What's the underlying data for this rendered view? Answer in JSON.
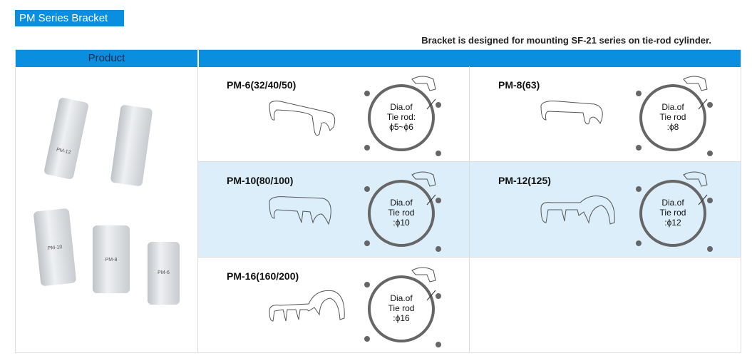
{
  "title": "PM Series Bracket",
  "subtitle": "Bracket is designed for mounting SF-21 series on tie-rod cylinder.",
  "header": {
    "product": "Product"
  },
  "product_labels": [
    "PM-12",
    "PM-10",
    "PM-8",
    "PM-6"
  ],
  "cells": [
    {
      "model": "PM-6(32/40/50)",
      "l1": "Dia.of",
      "l2": "Tie rod:",
      "l3": "ϕ5~ϕ6"
    },
    {
      "model": "PM-8(63)",
      "l1": "Dia.of",
      "l2": "Tie rod",
      "l3": ":ϕ8"
    },
    {
      "model": "PM-10(80/100)",
      "l1": "Dia.of",
      "l2": "Tie rod",
      "l3": ":ϕ10"
    },
    {
      "model": "PM-12(125)",
      "l1": "Dia.of",
      "l2": "Tie rod",
      "l3": ":ϕ12"
    },
    {
      "model": "PM-16(160/200)",
      "l1": "Dia.of",
      "l2": "Tie rod",
      "l3": ":ϕ16"
    }
  ],
  "colors": {
    "accent": "#0a8fe0",
    "row_highlight": "#dbeefa"
  }
}
